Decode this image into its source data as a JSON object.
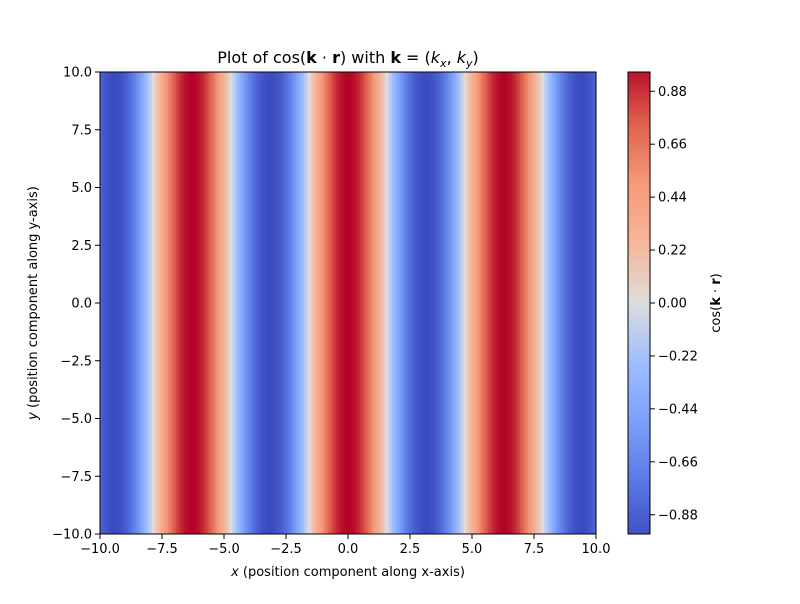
{
  "chart_data": {
    "type": "heatmap",
    "title": {
      "prefix": "Plot of cos(",
      "k": "k",
      "dot": " · ",
      "r": "r",
      "mid": ") with ",
      "k2": "k",
      "eq": " = (",
      "kx_base": "k",
      "kx_sub": "x",
      "comma": ", ",
      "ky_base": "k",
      "ky_sub": "y",
      "end": ")"
    },
    "xlabel": {
      "var": "x",
      "text": " (position component along x-axis)"
    },
    "ylabel": {
      "var": "y",
      "text": " (position component along y-axis)"
    },
    "colorbar_label": {
      "prefix": "cos(",
      "k": "k",
      "dot": " · ",
      "r": "r",
      "end": ")"
    },
    "xlim": [
      -10,
      10
    ],
    "ylim": [
      -10,
      10
    ],
    "xticks": [
      -10,
      -7.5,
      -5,
      -2.5,
      0,
      2.5,
      5,
      7.5,
      10
    ],
    "yticks": [
      -10,
      -7.5,
      -5,
      -2.5,
      0,
      2.5,
      5,
      7.5,
      10
    ],
    "xtick_labels": [
      "−10.0",
      "−7.5",
      "−5.0",
      "−2.5",
      "0.0",
      "2.5",
      "5.0",
      "7.5",
      "10.0"
    ],
    "ytick_labels": [
      "−10.0",
      "−7.5",
      "−5.0",
      "−2.5",
      "0.0",
      "2.5",
      "5.0",
      "7.5",
      "10.0"
    ],
    "colorbar_ticks": [
      -0.88,
      -0.66,
      -0.44,
      -0.22,
      0,
      0.22,
      0.44,
      0.66,
      0.88
    ],
    "colorbar_tick_labels": [
      "−0.88",
      "−0.66",
      "−0.44",
      "−0.22",
      "0.00",
      "0.22",
      "0.44",
      "0.66",
      "0.88"
    ],
    "colorbar_range": [
      -0.96,
      0.96
    ],
    "colormap": "coolwarm",
    "colormap_stops": [
      {
        "value": -1.0,
        "color": "#3b4cc0"
      },
      {
        "value": -0.75,
        "color": "#5977e3"
      },
      {
        "value": -0.5,
        "color": "#7b9ff9"
      },
      {
        "value": -0.25,
        "color": "#9ebeff"
      },
      {
        "value": 0.0,
        "color": "#dddddd"
      },
      {
        "value": 0.25,
        "color": "#f6b69a"
      },
      {
        "value": 0.5,
        "color": "#f49a7b"
      },
      {
        "value": 0.75,
        "color": "#de604d"
      },
      {
        "value": 1.0,
        "color": "#b40426"
      }
    ],
    "wave": {
      "kx": 1.0,
      "ky": 0.0
    }
  }
}
